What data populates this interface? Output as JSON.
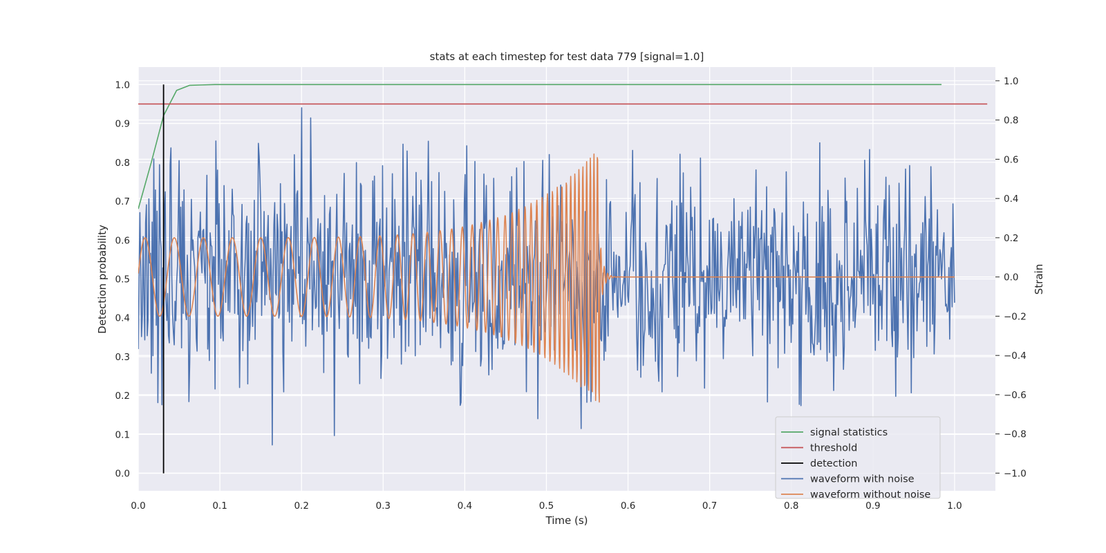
{
  "chart_data": {
    "type": "line",
    "title": "stats at each timestep for test data 779 [signal=1.0]",
    "xlabel": "Time (s)",
    "ylabel_left": "Detection probability",
    "ylabel_right": "Strain",
    "xlim": [
      0.0,
      1.05
    ],
    "ylim_left": [
      -0.045,
      1.045
    ],
    "ylim_right": [
      -1.09,
      1.07
    ],
    "x_ticks": [
      0.0,
      0.1,
      0.2,
      0.3,
      0.4,
      0.5,
      0.6,
      0.7,
      0.8,
      0.9,
      1.0
    ],
    "x_tick_labels": [
      "0.0",
      "0.1",
      "0.2",
      "0.3",
      "0.4",
      "0.5",
      "0.6",
      "0.7",
      "0.8",
      "0.9",
      "1.0"
    ],
    "y_left_ticks": [
      0.0,
      0.1,
      0.2,
      0.3,
      0.4,
      0.5,
      0.6,
      0.7,
      0.8,
      0.9,
      1.0
    ],
    "y_left_tick_labels": [
      "0.0",
      "0.1",
      "0.2",
      "0.3",
      "0.4",
      "0.5",
      "0.6",
      "0.7",
      "0.8",
      "0.9",
      "1.0"
    ],
    "y_right_ticks": [
      -1.0,
      -0.8,
      -0.6,
      -0.4,
      -0.2,
      0.0,
      0.2,
      0.4,
      0.6,
      0.8,
      1.0
    ],
    "y_right_tick_labels": [
      "−1.0",
      "−0.8",
      "−0.6",
      "−0.4",
      "−0.2",
      "0.0",
      "0.2",
      "0.4",
      "0.6",
      "0.8",
      "1.0"
    ],
    "grid": true,
    "legend_position": "lower-right",
    "series": [
      {
        "name": "signal statistics",
        "axis": "left",
        "color": "#55a868",
        "x": [
          0.0,
          0.016,
          0.031,
          0.047,
          0.063,
          0.078,
          0.094,
          0.2,
          0.4,
          0.6,
          0.8,
          0.984
        ],
        "y": [
          0.68,
          0.8,
          0.92,
          0.985,
          0.998,
          0.999,
          1.0,
          1.0,
          1.0,
          1.0,
          1.0,
          1.0
        ]
      },
      {
        "name": "threshold",
        "axis": "left",
        "color": "#c44e52",
        "x": [
          0.0,
          1.04
        ],
        "y": [
          0.95,
          0.95
        ]
      },
      {
        "name": "detection",
        "axis": "left",
        "color": "#000000",
        "x": [
          0.031,
          0.031
        ],
        "y": [
          0.0,
          1.0
        ]
      },
      {
        "name": "waveform with noise",
        "axis": "right",
        "color": "#4c72b0",
        "generated": {
          "x_start": 0.0,
          "x_end": 1.0,
          "count": 1000,
          "sigma": 0.28,
          "min": -1.0,
          "max": 1.0,
          "seed": 779
        }
      },
      {
        "name": "waveform without noise",
        "axis": "right",
        "color": "#dd8452",
        "generated": {
          "x_start": 0.0,
          "x_end": 1.0,
          "count": 2000,
          "merger_time": 0.565,
          "base_amplitude": 0.2,
          "peak_amplitude": 0.66,
          "base_frequency": 28,
          "peak_frequency": 240
        }
      }
    ]
  }
}
